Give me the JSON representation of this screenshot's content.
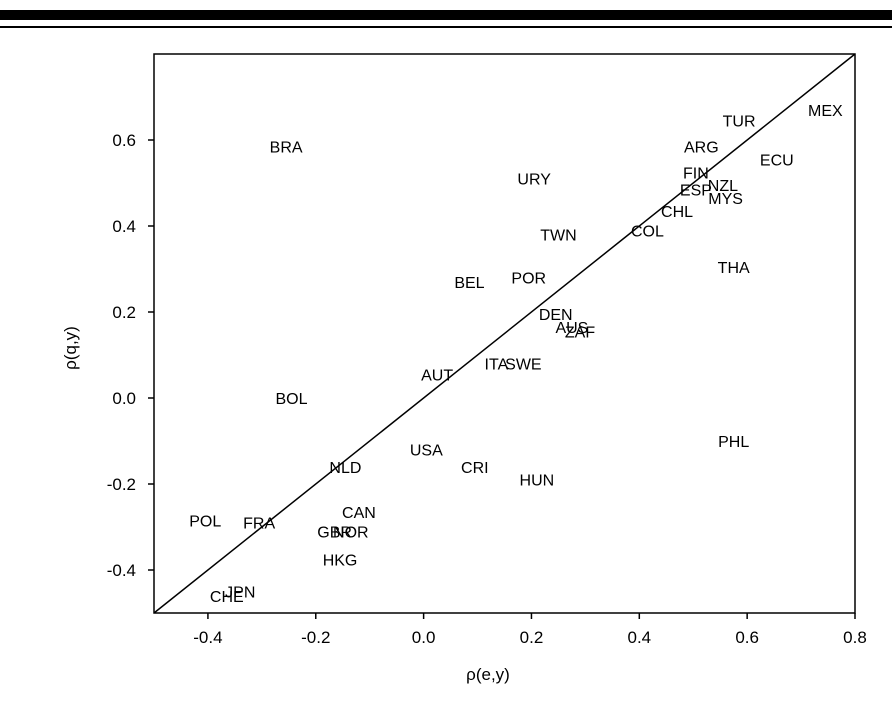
{
  "chart_data": {
    "type": "scatter",
    "title": "",
    "xlabel": "ρ(e,y)",
    "ylabel": "ρ(q,y)",
    "xlim": [
      -0.5,
      0.8
    ],
    "ylim": [
      -0.5,
      0.8
    ],
    "x_ticks": [
      -0.4,
      -0.2,
      0.0,
      0.2,
      0.4,
      0.6,
      0.8
    ],
    "x_tick_labels": [
      "-0.4",
      "-0.2",
      "0.0",
      "0.2",
      "0.4",
      "0.6",
      "0.8"
    ],
    "y_ticks": [
      -0.4,
      -0.2,
      0.0,
      0.2,
      0.4,
      0.6
    ],
    "y_tick_labels": [
      "-0.4",
      "-0.2",
      "0.0",
      "0.2",
      "0.4",
      "0.6"
    ],
    "grid": false,
    "diagonal_line": [
      [
        -0.5,
        -0.5
      ],
      [
        0.8,
        0.8
      ]
    ],
    "points": [
      {
        "label": "MEX",
        "x": 0.745,
        "y": 0.67
      },
      {
        "label": "TUR",
        "x": 0.585,
        "y": 0.645
      },
      {
        "label": "ARG",
        "x": 0.515,
        "y": 0.585
      },
      {
        "label": "ECU",
        "x": 0.655,
        "y": 0.555
      },
      {
        "label": "FIN",
        "x": 0.505,
        "y": 0.525
      },
      {
        "label": "ESP",
        "x": 0.505,
        "y": 0.485
      },
      {
        "label": "NZL",
        "x": 0.555,
        "y": 0.495
      },
      {
        "label": "MYS",
        "x": 0.56,
        "y": 0.465
      },
      {
        "label": "CHL",
        "x": 0.47,
        "y": 0.435
      },
      {
        "label": "COL",
        "x": 0.415,
        "y": 0.39
      },
      {
        "label": "BRA",
        "x": -0.255,
        "y": 0.585
      },
      {
        "label": "URY",
        "x": 0.205,
        "y": 0.51
      },
      {
        "label": "TWN",
        "x": 0.25,
        "y": 0.38
      },
      {
        "label": "THA",
        "x": 0.575,
        "y": 0.305
      },
      {
        "label": "BEL",
        "x": 0.085,
        "y": 0.27
      },
      {
        "label": "POR",
        "x": 0.195,
        "y": 0.28
      },
      {
        "label": "DEN",
        "x": 0.245,
        "y": 0.195
      },
      {
        "label": "AUS",
        "x": 0.275,
        "y": 0.165
      },
      {
        "label": "ZAF",
        "x": 0.29,
        "y": 0.155
      },
      {
        "label": "ITA",
        "x": 0.135,
        "y": 0.08
      },
      {
        "label": "SWE",
        "x": 0.185,
        "y": 0.08
      },
      {
        "label": "AUT",
        "x": 0.025,
        "y": 0.055
      },
      {
        "label": "BOL",
        "x": -0.245,
        "y": 0.0
      },
      {
        "label": "PHL",
        "x": 0.575,
        "y": -0.1
      },
      {
        "label": "USA",
        "x": 0.005,
        "y": -0.12
      },
      {
        "label": "NLD",
        "x": -0.145,
        "y": -0.16
      },
      {
        "label": "CRI",
        "x": 0.095,
        "y": -0.16
      },
      {
        "label": "HUN",
        "x": 0.21,
        "y": -0.19
      },
      {
        "label": "CAN",
        "x": -0.12,
        "y": -0.265
      },
      {
        "label": "POL",
        "x": -0.405,
        "y": -0.285
      },
      {
        "label": "FRA",
        "x": -0.305,
        "y": -0.29
      },
      {
        "label": "GBR",
        "x": -0.165,
        "y": -0.31
      },
      {
        "label": "NOR",
        "x": -0.135,
        "y": -0.31
      },
      {
        "label": "HKG",
        "x": -0.155,
        "y": -0.375
      },
      {
        "label": "JPN",
        "x": -0.34,
        "y": -0.45
      },
      {
        "label": "CHE",
        "x": -0.365,
        "y": -0.46
      }
    ]
  }
}
